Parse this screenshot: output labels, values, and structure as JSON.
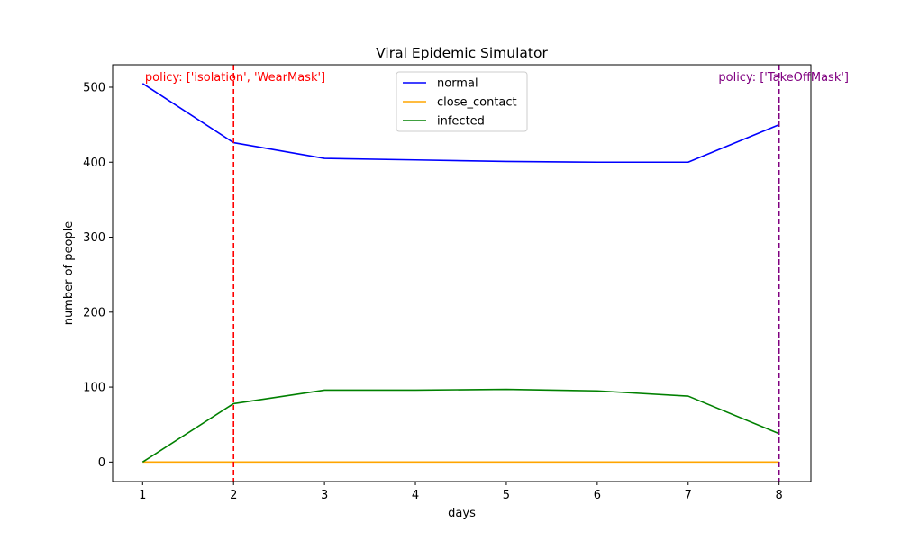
{
  "chart_data": {
    "type": "line",
    "title": "Viral Epidemic Simulator",
    "xlabel": "days",
    "ylabel": "number of people",
    "x": [
      1,
      2,
      3,
      4,
      5,
      6,
      7,
      8
    ],
    "xlim": [
      0.67,
      8.35
    ],
    "ylim": [
      -26,
      530
    ],
    "xticks": [
      1,
      2,
      3,
      4,
      5,
      6,
      7,
      8
    ],
    "yticks": [
      0,
      100,
      200,
      300,
      400,
      500
    ],
    "grid": false,
    "legend_position": "upper center",
    "series": [
      {
        "name": "normal",
        "color": "#0000ff",
        "values": [
          505,
          426,
          405,
          403,
          401,
          400,
          400,
          450
        ]
      },
      {
        "name": "close_contact",
        "color": "#ffa500",
        "values": [
          0,
          0,
          0,
          0,
          0,
          0,
          0,
          0
        ]
      },
      {
        "name": "infected",
        "color": "#008000",
        "values": [
          0,
          78,
          96,
          96,
          97,
          95,
          88,
          38
        ]
      }
    ],
    "vlines": [
      {
        "x": 2,
        "color": "#ff0000",
        "label": "policy: ['isolation', 'WearMask']",
        "label_align": "left"
      },
      {
        "x": 8,
        "color": "#800080",
        "label": "policy: ['TakeOffMask']",
        "label_align": "right"
      }
    ]
  }
}
